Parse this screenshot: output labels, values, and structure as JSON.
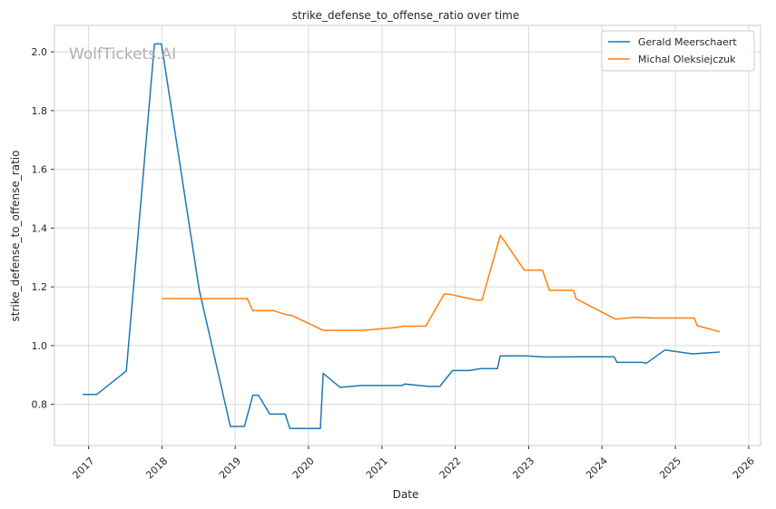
{
  "watermark": "WolfTickets.AI",
  "chart_data": {
    "type": "line",
    "title": "strike_defense_to_offense_ratio over time",
    "xlabel": "Date",
    "ylabel": "strike_defense_to_offense_ratio",
    "x_ticks": [
      "2017",
      "2018",
      "2019",
      "2020",
      "2021",
      "2022",
      "2023",
      "2024",
      "2025",
      "2026"
    ],
    "y_ticks": [
      "0.8",
      "1.0",
      "1.2",
      "1.4",
      "1.6",
      "1.8",
      "2.0"
    ],
    "xlim": [
      "2016-07-15",
      "2026-03-01"
    ],
    "ylim": [
      0.66,
      2.09
    ],
    "grid": true,
    "legend_position": "top-right",
    "series": [
      {
        "name": "Gerald Meerschaert",
        "color": "#1f77b4",
        "points": [
          [
            "2016-12-03",
            0.834
          ],
          [
            "2017-02-11",
            0.834
          ],
          [
            "2017-07-08",
            0.914
          ],
          [
            "2017-11-25",
            2.027
          ],
          [
            "2017-12-30",
            2.027
          ],
          [
            "2018-07-06",
            1.19
          ],
          [
            "2018-12-08",
            0.725
          ],
          [
            "2019-02-16",
            0.725
          ],
          [
            "2019-03-30",
            0.831
          ],
          [
            "2019-04-27",
            0.831
          ],
          [
            "2019-06-22",
            0.767
          ],
          [
            "2019-09-07",
            0.767
          ],
          [
            "2019-09-30",
            0.718
          ],
          [
            "2020-02-29",
            0.718
          ],
          [
            "2020-03-14",
            0.906
          ],
          [
            "2020-06-06",
            0.858
          ],
          [
            "2020-09-19",
            0.864
          ],
          [
            "2021-04-10",
            0.864
          ],
          [
            "2021-04-24",
            0.869
          ],
          [
            "2021-08-21",
            0.861
          ],
          [
            "2021-10-16",
            0.861
          ],
          [
            "2021-12-18",
            0.915
          ],
          [
            "2022-03-12",
            0.915
          ],
          [
            "2022-05-07",
            0.922
          ],
          [
            "2022-07-30",
            0.922
          ],
          [
            "2022-08-13",
            0.965
          ],
          [
            "2022-12-17",
            0.965
          ],
          [
            "2023-03-25",
            0.961
          ],
          [
            "2023-09-16",
            0.962
          ],
          [
            "2024-03-02",
            0.962
          ],
          [
            "2024-03-16",
            0.943
          ],
          [
            "2024-07-20",
            0.943
          ],
          [
            "2024-08-10",
            0.94
          ],
          [
            "2024-11-09",
            0.985
          ],
          [
            "2025-03-29",
            0.972
          ],
          [
            "2025-08-09",
            0.978
          ]
        ]
      },
      {
        "name": "Michal Oleksiejczuk",
        "color": "#ff7f0e",
        "points": [
          [
            "2018-01-01",
            1.16
          ],
          [
            "2019-03-02",
            1.16
          ],
          [
            "2019-03-30",
            1.119
          ],
          [
            "2019-07-13",
            1.119
          ],
          [
            "2019-09-07",
            1.106
          ],
          [
            "2019-10-12",
            1.102
          ],
          [
            "2020-03-14",
            1.052
          ],
          [
            "2020-09-26",
            1.052
          ],
          [
            "2021-02-27",
            1.061
          ],
          [
            "2021-04-17",
            1.066
          ],
          [
            "2021-08-07",
            1.066
          ],
          [
            "2021-11-06",
            1.175
          ],
          [
            "2021-12-04",
            1.175
          ],
          [
            "2022-02-19",
            1.163
          ],
          [
            "2022-04-16",
            1.155
          ],
          [
            "2022-05-14",
            1.155
          ],
          [
            "2022-08-13",
            1.375
          ],
          [
            "2022-08-27",
            1.362
          ],
          [
            "2022-12-10",
            1.257
          ],
          [
            "2023-03-11",
            1.257
          ],
          [
            "2023-04-15",
            1.188
          ],
          [
            "2023-08-12",
            1.188
          ],
          [
            "2023-08-26",
            1.159
          ],
          [
            "2024-03-09",
            1.09
          ],
          [
            "2024-06-08",
            1.096
          ],
          [
            "2024-09-21",
            1.094
          ],
          [
            "2025-03-01",
            1.094
          ],
          [
            "2025-04-05",
            1.094
          ],
          [
            "2025-04-19",
            1.068
          ],
          [
            "2025-08-09",
            1.047
          ]
        ]
      }
    ]
  }
}
